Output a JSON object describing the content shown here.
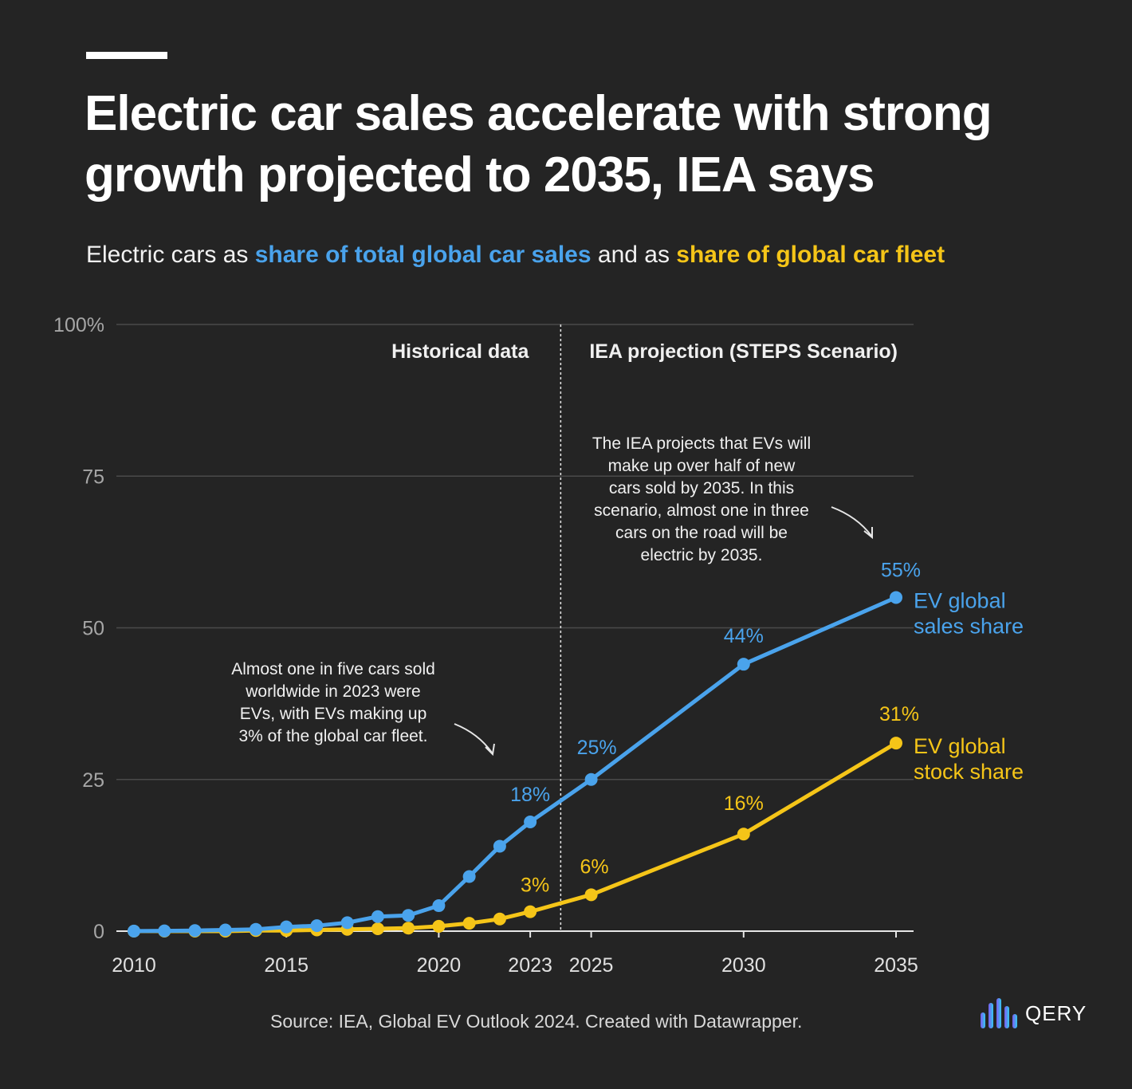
{
  "header": {
    "title": "Electric car sales accelerate with strong growth projected to 2035, IEA says",
    "subtitle_prefix": "Electric cars as ",
    "subtitle_sales": "share of total global car sales",
    "subtitle_mid": " and as ",
    "subtitle_fleet": "share of global car fleet"
  },
  "colors": {
    "background": "#242424",
    "sales": "#4aa3ec",
    "stock": "#f5c518",
    "grid": "#4a4a4a",
    "axis_text": "#a6a6a6"
  },
  "chart_data": {
    "type": "line",
    "title": "Electric cars as share of total global car sales and as share of global car fleet",
    "xlabel": "",
    "ylabel": "",
    "xlim": [
      2010,
      2035
    ],
    "ylim": [
      0,
      100
    ],
    "y_ticks": [
      0,
      25,
      50,
      75,
      100
    ],
    "y_tick_labels": [
      "0",
      "25",
      "50",
      "75",
      "100%"
    ],
    "x_ticks": [
      2010,
      2015,
      2020,
      2023,
      2025,
      2030,
      2035
    ],
    "x_tick_labels": [
      "2010",
      "2015",
      "2020",
      "2023",
      "2025",
      "2030",
      "2035"
    ],
    "divider_x": 2024,
    "section_labels": {
      "historical": "Historical data",
      "projection": "IEA projection (STEPS Scenario)"
    },
    "series": [
      {
        "name": "EV global sales share",
        "label_lines": [
          "EV global",
          "sales share"
        ],
        "color": "#4aa3ec",
        "points": [
          [
            2010,
            0.01
          ],
          [
            2011,
            0.05
          ],
          [
            2012,
            0.1
          ],
          [
            2013,
            0.2
          ],
          [
            2014,
            0.3
          ],
          [
            2015,
            0.7
          ],
          [
            2016,
            0.9
          ],
          [
            2017,
            1.4
          ],
          [
            2018,
            2.4
          ],
          [
            2019,
            2.6
          ],
          [
            2020,
            4.2
          ],
          [
            2021,
            9
          ],
          [
            2022,
            14
          ],
          [
            2023,
            18
          ],
          [
            2025,
            25
          ],
          [
            2030,
            44
          ],
          [
            2035,
            55
          ]
        ],
        "value_labels": [
          {
            "x": 2023,
            "text": "18%"
          },
          {
            "x": 2025,
            "text": "25%"
          },
          {
            "x": 2030,
            "text": "44%"
          },
          {
            "x": 2035,
            "text": "55%"
          }
        ]
      },
      {
        "name": "EV global stock share",
        "label_lines": [
          "EV global",
          "stock share"
        ],
        "color": "#f5c518",
        "points": [
          [
            2010,
            0
          ],
          [
            2011,
            0
          ],
          [
            2012,
            0
          ],
          [
            2013,
            0
          ],
          [
            2014,
            0.1
          ],
          [
            2015,
            0.1
          ],
          [
            2016,
            0.2
          ],
          [
            2017,
            0.3
          ],
          [
            2018,
            0.4
          ],
          [
            2019,
            0.5
          ],
          [
            2020,
            0.8
          ],
          [
            2021,
            1.3
          ],
          [
            2022,
            2
          ],
          [
            2023,
            3.2
          ],
          [
            2025,
            6
          ],
          [
            2030,
            16
          ],
          [
            2035,
            31
          ]
        ],
        "value_labels": [
          {
            "x": 2023,
            "text": "3%"
          },
          {
            "x": 2025,
            "text": "6%"
          },
          {
            "x": 2030,
            "text": "16%"
          },
          {
            "x": 2035,
            "text": "31%"
          }
        ]
      }
    ],
    "annotations": [
      {
        "id": "left",
        "lines": [
          "Almost one in five cars sold",
          "worldwide in 2023 were",
          "EVs, with EVs making up",
          "3% of the global car fleet."
        ]
      },
      {
        "id": "right",
        "lines": [
          "The IEA projects that EVs will",
          "make up over half of new",
          "cars sold by 2035. In this",
          "scenario, almost one in three",
          "cars on the road will be",
          "electric by 2035."
        ]
      }
    ]
  },
  "footer": {
    "source": "Source: IEA, Global EV Outlook 2024. Created with Datawrapper.",
    "logo": "QERY"
  }
}
